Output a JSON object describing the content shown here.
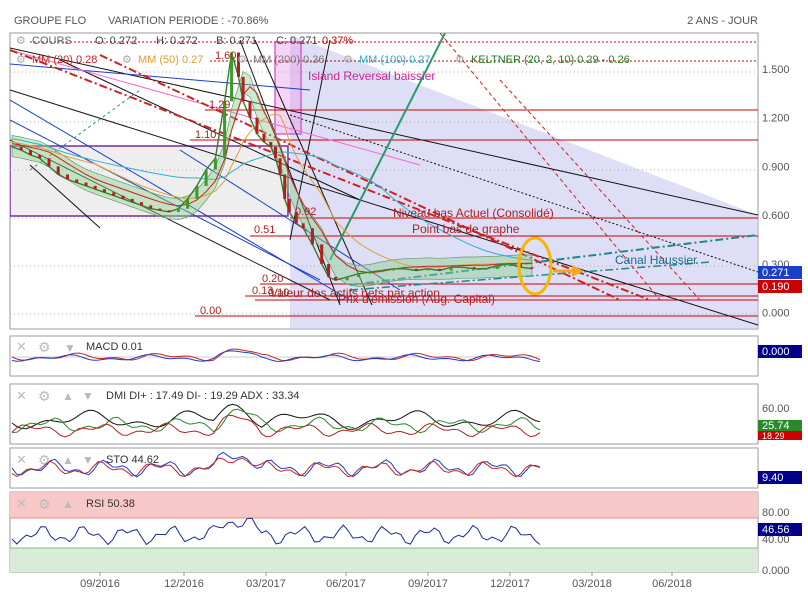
{
  "header": {
    "company": "GROUPE FLO",
    "variation": "VARIATION PERIODE : -70.86%",
    "period": "2 ANS - JOUR"
  },
  "legend_row1": {
    "cours": "COURS",
    "o": "O: 0.272",
    "h": "H: 0.272",
    "b": "B: 0.271",
    "c": "C: 0.271",
    "change": "0.37%"
  },
  "legend_row2": {
    "mm20": "MM (20) 0.28",
    "mm50": "MM (50) 0.27",
    "mm200": "MM (200) 0.36",
    "mm100": "MM (100) 0.27",
    "keltner": "KELTNER (20, 2, 10) 0.29 - 0.26"
  },
  "colors": {
    "red": "#cc0000",
    "teal": "#22aa88",
    "blue": "#1a3fc8",
    "green": "#2a8a2a",
    "purple": "#7a2a9a",
    "pink": "#ff66cc",
    "lavender": "#c8c8f0",
    "orange": "#f5a623",
    "darkblue": "#00008b"
  },
  "chart_data": [
    {
      "type": "line",
      "name": "price",
      "x_ticks": [
        "09/2016",
        "12/2016",
        "03/2017",
        "06/2017",
        "09/2017",
        "12/2017",
        "03/2018",
        "06/2018"
      ],
      "y_ticks": [
        "0.000",
        "0.300",
        "0.600",
        "0.900",
        "1.200",
        "1.500"
      ],
      "ylim": [
        -0.1,
        1.72
      ],
      "series": [
        {
          "values": [
            [
              0,
              1.02
            ],
            [
              4,
              1.0
            ],
            [
              8,
              0.97
            ],
            [
              12,
              0.95
            ],
            [
              16,
              0.9
            ],
            [
              20,
              0.85
            ],
            [
              24,
              0.82
            ],
            [
              28,
              0.8
            ],
            [
              32,
              0.78
            ],
            [
              36,
              0.76
            ],
            [
              40,
              0.74
            ],
            [
              44,
              0.72
            ],
            [
              48,
              0.7
            ],
            [
              52,
              0.68
            ],
            [
              56,
              0.66
            ],
            [
              60,
              0.64
            ],
            [
              64,
              0.63
            ],
            [
              68,
              0.62
            ],
            [
              72,
              0.64
            ],
            [
              76,
              0.7
            ],
            [
              80,
              0.78
            ],
            [
              84,
              0.88
            ],
            [
              88,
              0.95
            ],
            [
              92,
              1.3
            ],
            [
              95,
              1.6
            ],
            [
              98,
              1.45
            ],
            [
              100,
              1.3
            ],
            [
              103,
              1.2
            ],
            [
              106,
              1.1
            ],
            [
              109,
              1.05
            ],
            [
              112,
              1.02
            ],
            [
              114,
              0.95
            ],
            [
              116,
              0.85
            ],
            [
              118,
              0.7
            ],
            [
              120,
              0.62
            ],
            [
              123,
              0.55
            ],
            [
              126,
              0.52
            ],
            [
              130,
              0.42
            ],
            [
              134,
              0.3
            ],
            [
              137,
              0.22
            ],
            [
              140,
              0.2
            ],
            [
              145,
              0.22
            ],
            [
              150,
              0.24
            ],
            [
              155,
              0.25
            ],
            [
              160,
              0.26
            ],
            [
              165,
              0.27
            ],
            [
              170,
              0.27
            ],
            [
              175,
              0.26
            ],
            [
              180,
              0.27
            ],
            [
              185,
              0.26
            ],
            [
              190,
              0.28
            ],
            [
              195,
              0.28
            ],
            [
              200,
              0.27
            ],
            [
              205,
              0.27
            ],
            [
              210,
              0.29
            ],
            [
              215,
              0.3
            ],
            [
              220,
              0.28
            ],
            [
              225,
              0.271
            ]
          ]
        }
      ]
    },
    {
      "type": "line",
      "name": "MACD",
      "title": "MACD 0.01",
      "label_values": [
        "0.000"
      ]
    },
    {
      "type": "line",
      "name": "DMI",
      "title": "DMI DI+ : 17.49 DI- : 19.29 ADX : 33.34",
      "y_ticks": [
        "60.00"
      ],
      "label_values": [
        "25.74",
        "18.29"
      ]
    },
    {
      "type": "line",
      "name": "STO",
      "title": "STO 44.62",
      "label_values": [
        "9.40"
      ]
    },
    {
      "type": "line",
      "name": "RSI",
      "title": "RSI 50.38",
      "y_ticks": [
        "80.00",
        "40.00",
        "0.000"
      ],
      "label_values": [
        "46.56"
      ]
    }
  ],
  "annotations": {
    "island": "Island Reversal baissier",
    "niveau_bas": "Niveau bas Actuel (Consolidé)",
    "point_bas": "Point bas de graphe",
    "canal": "Canal Haussier",
    "valeur_actifs": "Valeur des actifs nets par action",
    "prix_emission": "Prix d'émission (Aug. Capital)",
    "l160": "1.60",
    "l129": "1.29",
    "l110": "1.10",
    "l092": "0.92",
    "l051": "0.51",
    "l020": "0.20",
    "l013": "0.13",
    "l010": "0.10",
    "l000": "0.00"
  },
  "price_labels": {
    "last": "0.271",
    "level": "0.190"
  }
}
